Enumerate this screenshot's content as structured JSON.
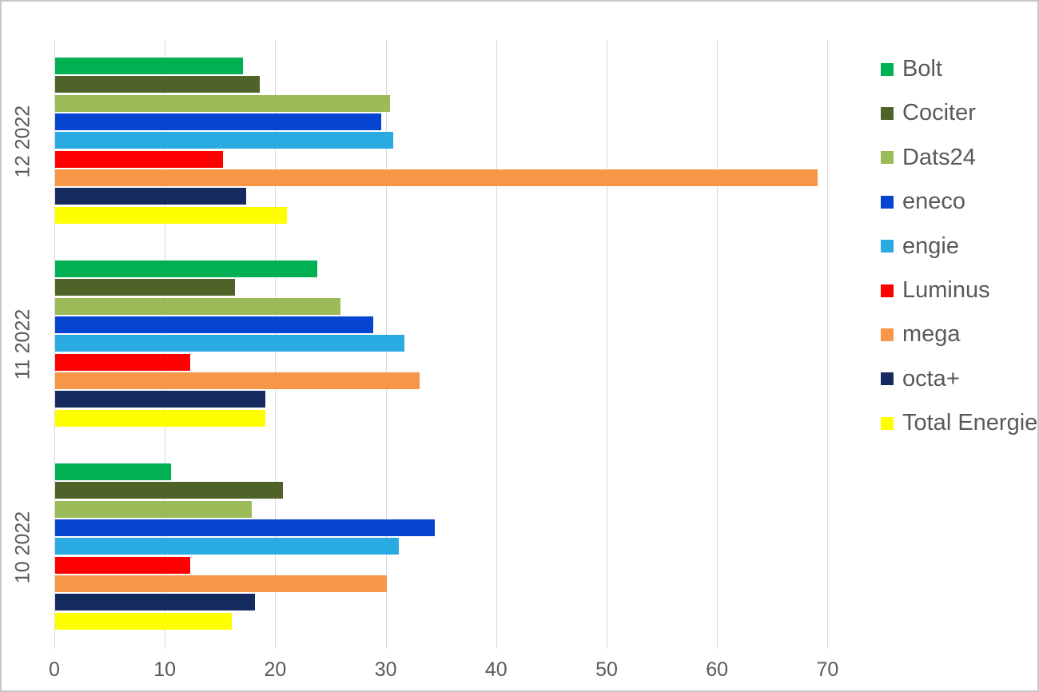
{
  "chart_data": {
    "type": "bar",
    "orientation": "horizontal",
    "title": "",
    "xlabel": "",
    "ylabel": "",
    "categories": [
      "12 2022",
      "11 2022",
      "10 2022"
    ],
    "series": [
      {
        "name": "Bolt",
        "color": "#00b052",
        "values": [
          17.0,
          23.7,
          10.5
        ]
      },
      {
        "name": "Cociter",
        "color": "#4f6228",
        "values": [
          18.5,
          16.3,
          20.6
        ]
      },
      {
        "name": "Dats24",
        "color": "#9bbb59",
        "values": [
          30.3,
          25.8,
          17.8
        ]
      },
      {
        "name": "eneco",
        "color": "#0545d2",
        "values": [
          29.5,
          28.8,
          34.4
        ]
      },
      {
        "name": "engie",
        "color": "#29abe2",
        "values": [
          30.6,
          31.6,
          31.1
        ]
      },
      {
        "name": "Luminus",
        "color": "#fe0000",
        "values": [
          15.2,
          12.2,
          12.2
        ]
      },
      {
        "name": "mega",
        "color": "#f79646",
        "values": [
          69.0,
          33.0,
          30.0
        ]
      },
      {
        "name": "octa+",
        "color": "#152a5f",
        "values": [
          17.3,
          19.0,
          18.1
        ]
      },
      {
        "name": "Total Energie",
        "color": "#ffff00",
        "values": [
          21.0,
          19.0,
          16.0
        ]
      }
    ],
    "x_ticks": [
      0,
      10,
      20,
      30,
      40,
      50,
      60,
      70
    ],
    "xlim": [
      0,
      73
    ],
    "grid": "vertical-only",
    "legend_position": "right"
  },
  "colors": {
    "gridline": "#d9d9d9",
    "frame_border": "#c8c8c8",
    "axis_text": "#595959",
    "background": "#ffffff"
  }
}
